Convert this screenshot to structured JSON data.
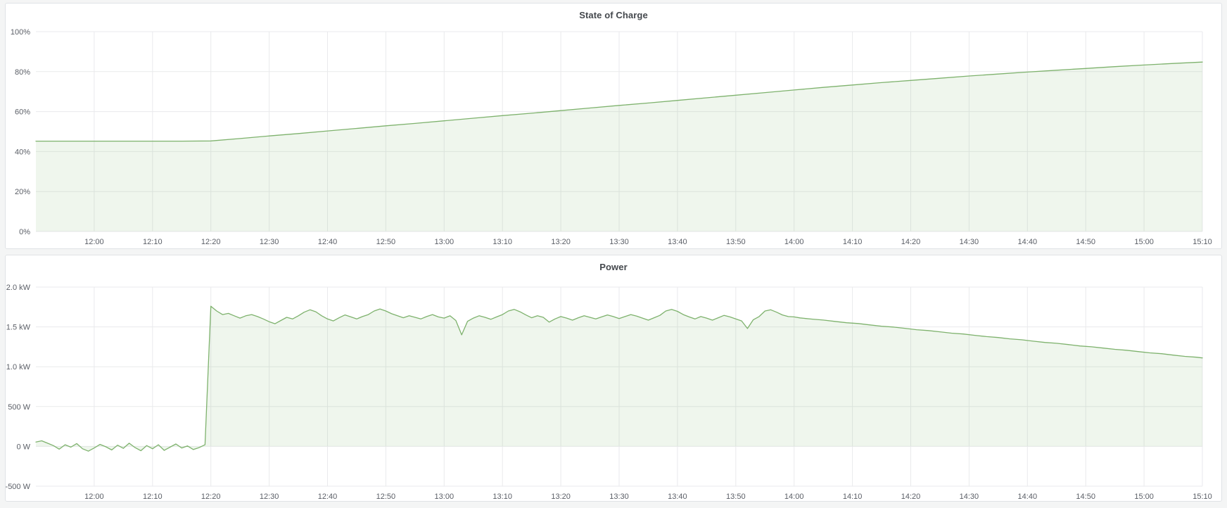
{
  "theme": {
    "page_bg": "#f4f5f5",
    "panel_bg": "#ffffff",
    "panel_border": "#e0e3e6",
    "grid_color": "#e9eaec",
    "axis_text": "#5a5e66",
    "title_text": "#44484d",
    "series_green": "#7eb26d",
    "series_fill": "rgba(126,178,109,0.12)"
  },
  "panels": [
    {
      "title": "State of Charge"
    },
    {
      "title": "Power"
    }
  ],
  "chart_data": [
    {
      "type": "area",
      "title": "State of Charge",
      "x_unit": "minutes_since_midnight",
      "x_range": [
        710,
        910
      ],
      "ylim": [
        0,
        100
      ],
      "grid": true,
      "legend": "none",
      "x_ticks": [
        [
          720,
          "12:00"
        ],
        [
          730,
          "12:10"
        ],
        [
          740,
          "12:20"
        ],
        [
          750,
          "12:30"
        ],
        [
          760,
          "12:40"
        ],
        [
          770,
          "12:50"
        ],
        [
          780,
          "13:00"
        ],
        [
          790,
          "13:10"
        ],
        [
          800,
          "13:20"
        ],
        [
          810,
          "13:30"
        ],
        [
          820,
          "13:40"
        ],
        [
          830,
          "13:50"
        ],
        [
          840,
          "14:00"
        ],
        [
          850,
          "14:10"
        ],
        [
          860,
          "14:20"
        ],
        [
          870,
          "14:30"
        ],
        [
          880,
          "14:40"
        ],
        [
          890,
          "14:50"
        ],
        [
          900,
          "15:00"
        ],
        [
          910,
          "15:10"
        ]
      ],
      "y_ticks": [
        [
          0,
          "0%"
        ],
        [
          20,
          "20%"
        ],
        [
          40,
          "40%"
        ],
        [
          60,
          "60%"
        ],
        [
          80,
          "80%"
        ],
        [
          100,
          "100%"
        ]
      ],
      "series": [
        {
          "name": "State of Charge",
          "color": "#7eb26d",
          "fill": "rgba(126,178,109,0.12)",
          "fill_baseline": 0,
          "points": [
            [
              710,
              45.2
            ],
            [
              715,
              45.2
            ],
            [
              720,
              45.2
            ],
            [
              725,
              45.2
            ],
            [
              730,
              45.2
            ],
            [
              735,
              45.2
            ],
            [
              740,
              45.3
            ],
            [
              745,
              46.5
            ],
            [
              750,
              47.8
            ],
            [
              755,
              49.0
            ],
            [
              760,
              50.3
            ],
            [
              765,
              51.6
            ],
            [
              770,
              52.9
            ],
            [
              775,
              54.1
            ],
            [
              780,
              55.4
            ],
            [
              785,
              56.7
            ],
            [
              790,
              58.0
            ],
            [
              795,
              59.2
            ],
            [
              800,
              60.5
            ],
            [
              805,
              61.8
            ],
            [
              810,
              63.1
            ],
            [
              815,
              64.3
            ],
            [
              820,
              65.6
            ],
            [
              825,
              66.9
            ],
            [
              830,
              68.2
            ],
            [
              835,
              69.5
            ],
            [
              840,
              70.8
            ],
            [
              845,
              72.1
            ],
            [
              850,
              73.3
            ],
            [
              855,
              74.5
            ],
            [
              860,
              75.6
            ],
            [
              865,
              76.7
            ],
            [
              870,
              77.8
            ],
            [
              875,
              78.8
            ],
            [
              880,
              79.8
            ],
            [
              885,
              80.7
            ],
            [
              890,
              81.6
            ],
            [
              895,
              82.5
            ],
            [
              900,
              83.3
            ],
            [
              905,
              84.1
            ],
            [
              910,
              84.8
            ]
          ]
        }
      ]
    },
    {
      "type": "area",
      "title": "Power",
      "x_unit": "minutes_since_midnight",
      "x_range": [
        710,
        910
      ],
      "ylim": [
        -500,
        2000
      ],
      "grid": true,
      "legend": "none",
      "x_ticks": [
        [
          720,
          "12:00"
        ],
        [
          730,
          "12:10"
        ],
        [
          740,
          "12:20"
        ],
        [
          750,
          "12:30"
        ],
        [
          760,
          "12:40"
        ],
        [
          770,
          "12:50"
        ],
        [
          780,
          "13:00"
        ],
        [
          790,
          "13:10"
        ],
        [
          800,
          "13:20"
        ],
        [
          810,
          "13:30"
        ],
        [
          820,
          "13:40"
        ],
        [
          830,
          "13:50"
        ],
        [
          840,
          "14:00"
        ],
        [
          850,
          "14:10"
        ],
        [
          860,
          "14:20"
        ],
        [
          870,
          "14:30"
        ],
        [
          880,
          "14:40"
        ],
        [
          890,
          "14:50"
        ],
        [
          900,
          "15:00"
        ],
        [
          910,
          "15:10"
        ]
      ],
      "y_ticks": [
        [
          -500,
          "-500 W"
        ],
        [
          0,
          "0 W"
        ],
        [
          500,
          "500 W"
        ],
        [
          1000,
          "1.0 kW"
        ],
        [
          1500,
          "1.5 kW"
        ],
        [
          2000,
          "2.0 kW"
        ]
      ],
      "series": [
        {
          "name": "Power",
          "color": "#7eb26d",
          "fill": "rgba(126,178,109,0.12)",
          "fill_baseline": 0,
          "points": [
            [
              710,
              55
            ],
            [
              711,
              70
            ],
            [
              712,
              40
            ],
            [
              713,
              10
            ],
            [
              714,
              -35
            ],
            [
              715,
              20
            ],
            [
              716,
              -10
            ],
            [
              717,
              35
            ],
            [
              718,
              -30
            ],
            [
              719,
              -60
            ],
            [
              720,
              -20
            ],
            [
              721,
              25
            ],
            [
              722,
              -5
            ],
            [
              723,
              -45
            ],
            [
              724,
              15
            ],
            [
              725,
              -25
            ],
            [
              726,
              40
            ],
            [
              727,
              -15
            ],
            [
              728,
              -55
            ],
            [
              729,
              10
            ],
            [
              730,
              -30
            ],
            [
              731,
              20
            ],
            [
              732,
              -50
            ],
            [
              733,
              -10
            ],
            [
              734,
              30
            ],
            [
              735,
              -20
            ],
            [
              736,
              5
            ],
            [
              737,
              -40
            ],
            [
              738,
              -15
            ],
            [
              739,
              20
            ],
            [
              740,
              1760
            ],
            [
              741,
              1700
            ],
            [
              742,
              1655
            ],
            [
              743,
              1670
            ],
            [
              744,
              1640
            ],
            [
              745,
              1610
            ],
            [
              746,
              1640
            ],
            [
              747,
              1655
            ],
            [
              748,
              1630
            ],
            [
              749,
              1600
            ],
            [
              750,
              1565
            ],
            [
              751,
              1540
            ],
            [
              752,
              1580
            ],
            [
              753,
              1620
            ],
            [
              754,
              1600
            ],
            [
              755,
              1640
            ],
            [
              756,
              1685
            ],
            [
              757,
              1715
            ],
            [
              758,
              1690
            ],
            [
              759,
              1640
            ],
            [
              760,
              1600
            ],
            [
              761,
              1575
            ],
            [
              762,
              1615
            ],
            [
              763,
              1650
            ],
            [
              764,
              1625
            ],
            [
              765,
              1600
            ],
            [
              766,
              1630
            ],
            [
              767,
              1655
            ],
            [
              768,
              1700
            ],
            [
              769,
              1725
            ],
            [
              770,
              1700
            ],
            [
              771,
              1665
            ],
            [
              772,
              1640
            ],
            [
              773,
              1615
            ],
            [
              774,
              1640
            ],
            [
              775,
              1620
            ],
            [
              776,
              1600
            ],
            [
              777,
              1630
            ],
            [
              778,
              1655
            ],
            [
              779,
              1625
            ],
            [
              780,
              1610
            ],
            [
              781,
              1640
            ],
            [
              782,
              1580
            ],
            [
              783,
              1400
            ],
            [
              784,
              1570
            ],
            [
              785,
              1610
            ],
            [
              786,
              1640
            ],
            [
              787,
              1620
            ],
            [
              788,
              1595
            ],
            [
              789,
              1625
            ],
            [
              790,
              1655
            ],
            [
              791,
              1700
            ],
            [
              792,
              1720
            ],
            [
              793,
              1690
            ],
            [
              794,
              1650
            ],
            [
              795,
              1615
            ],
            [
              796,
              1640
            ],
            [
              797,
              1620
            ],
            [
              798,
              1560
            ],
            [
              799,
              1600
            ],
            [
              800,
              1630
            ],
            [
              801,
              1610
            ],
            [
              802,
              1585
            ],
            [
              803,
              1615
            ],
            [
              804,
              1640
            ],
            [
              805,
              1620
            ],
            [
              806,
              1600
            ],
            [
              807,
              1625
            ],
            [
              808,
              1650
            ],
            [
              809,
              1630
            ],
            [
              810,
              1605
            ],
            [
              811,
              1630
            ],
            [
              812,
              1655
            ],
            [
              813,
              1635
            ],
            [
              814,
              1610
            ],
            [
              815,
              1585
            ],
            [
              816,
              1615
            ],
            [
              817,
              1645
            ],
            [
              818,
              1700
            ],
            [
              819,
              1720
            ],
            [
              820,
              1695
            ],
            [
              821,
              1655
            ],
            [
              822,
              1625
            ],
            [
              823,
              1600
            ],
            [
              824,
              1630
            ],
            [
              825,
              1610
            ],
            [
              826,
              1585
            ],
            [
              827,
              1615
            ],
            [
              828,
              1645
            ],
            [
              829,
              1625
            ],
            [
              830,
              1600
            ],
            [
              831,
              1575
            ],
            [
              832,
              1480
            ],
            [
              833,
              1590
            ],
            [
              834,
              1630
            ],
            [
              835,
              1700
            ],
            [
              836,
              1715
            ],
            [
              837,
              1685
            ],
            [
              838,
              1650
            ],
            [
              839,
              1630
            ],
            [
              840,
              1625
            ],
            [
              841,
              1613
            ],
            [
              843,
              1598
            ],
            [
              845,
              1586
            ],
            [
              847,
              1569
            ],
            [
              849,
              1552
            ],
            [
              851,
              1542
            ],
            [
              853,
              1525
            ],
            [
              855,
              1509
            ],
            [
              857,
              1498
            ],
            [
              859,
              1482
            ],
            [
              861,
              1465
            ],
            [
              863,
              1454
            ],
            [
              865,
              1438
            ],
            [
              867,
              1421
            ],
            [
              869,
              1411
            ],
            [
              871,
              1394
            ],
            [
              873,
              1378
            ],
            [
              875,
              1367
            ],
            [
              877,
              1350
            ],
            [
              879,
              1338
            ],
            [
              881,
              1321
            ],
            [
              883,
              1305
            ],
            [
              885,
              1294
            ],
            [
              887,
              1278
            ],
            [
              889,
              1261
            ],
            [
              891,
              1250
            ],
            [
              893,
              1234
            ],
            [
              895,
              1218
            ],
            [
              897,
              1207
            ],
            [
              899,
              1190
            ],
            [
              901,
              1174
            ],
            [
              903,
              1163
            ],
            [
              905,
              1146
            ],
            [
              907,
              1130
            ],
            [
              909,
              1119
            ],
            [
              910,
              1110
            ]
          ]
        }
      ]
    }
  ]
}
